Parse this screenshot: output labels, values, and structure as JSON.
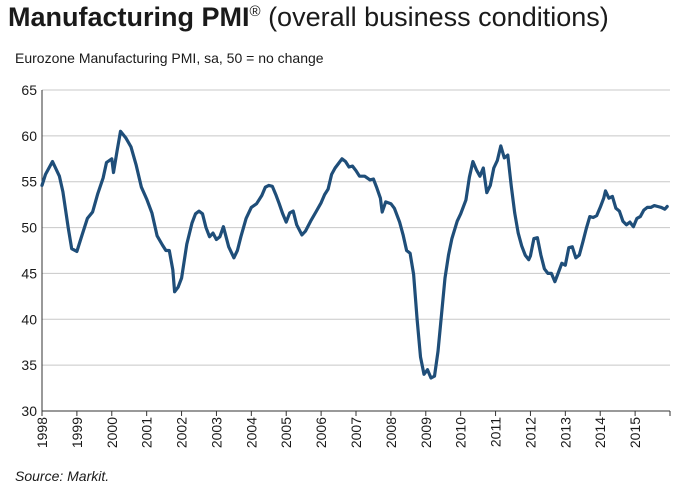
{
  "title": {
    "main": "Manufacturing PMI",
    "mark": "®",
    "rest": " (overall business conditions)"
  },
  "subtitle": "Eurozone Manufacturing PMI, sa, 50 = no change",
  "source": "Source: Markit.",
  "chart_data": {
    "type": "line",
    "title": "Manufacturing PMI® (overall business conditions)",
    "subtitle": "Eurozone Manufacturing PMI, sa, 50 = no change",
    "xlabel": "",
    "ylabel": "",
    "xlim": [
      1998.0,
      2016.0
    ],
    "ylim": [
      30,
      65
    ],
    "y_ticks": [
      30,
      35,
      40,
      45,
      50,
      55,
      60,
      65
    ],
    "x_ticks": [
      "1998",
      "1999",
      "2000",
      "2001",
      "2002",
      "2003",
      "2004",
      "2005",
      "2006",
      "2007",
      "2008",
      "2009",
      "2010",
      "2011",
      "2012",
      "2013",
      "2014",
      "2015"
    ],
    "grid": "horizontal",
    "line_color": "#1f4e79",
    "series": [
      {
        "points": [
          [
            1998.0,
            54.6
          ],
          [
            1998.1,
            55.8
          ],
          [
            1998.3,
            57.2
          ],
          [
            1998.5,
            55.6
          ],
          [
            1998.6,
            53.9
          ],
          [
            1998.75,
            50.0
          ],
          [
            1998.85,
            47.7
          ],
          [
            1999.0,
            47.4
          ],
          [
            1999.15,
            49.2
          ],
          [
            1999.3,
            51.0
          ],
          [
            1999.45,
            51.7
          ],
          [
            1999.6,
            53.7
          ],
          [
            1999.75,
            55.4
          ],
          [
            1999.85,
            57.1
          ],
          [
            2000.0,
            57.5
          ],
          [
            2000.05,
            56.0
          ],
          [
            2000.15,
            58.3
          ],
          [
            2000.25,
            60.5
          ],
          [
            2000.4,
            59.8
          ],
          [
            2000.55,
            58.8
          ],
          [
            2000.7,
            56.8
          ],
          [
            2000.85,
            54.4
          ],
          [
            2001.0,
            53.1
          ],
          [
            2001.15,
            51.6
          ],
          [
            2001.3,
            49.1
          ],
          [
            2001.45,
            48.1
          ],
          [
            2001.55,
            47.5
          ],
          [
            2001.65,
            47.5
          ],
          [
            2001.75,
            45.4
          ],
          [
            2001.8,
            43.0
          ],
          [
            2001.9,
            43.5
          ],
          [
            2002.0,
            44.5
          ],
          [
            2002.15,
            48.2
          ],
          [
            2002.3,
            50.5
          ],
          [
            2002.4,
            51.5
          ],
          [
            2002.5,
            51.8
          ],
          [
            2002.6,
            51.5
          ],
          [
            2002.7,
            50.0
          ],
          [
            2002.8,
            49.0
          ],
          [
            2002.9,
            49.4
          ],
          [
            2003.0,
            48.7
          ],
          [
            2003.1,
            49.0
          ],
          [
            2003.2,
            50.1
          ],
          [
            2003.35,
            47.9
          ],
          [
            2003.5,
            46.7
          ],
          [
            2003.6,
            47.5
          ],
          [
            2003.7,
            49.0
          ],
          [
            2003.85,
            51.0
          ],
          [
            2004.0,
            52.2
          ],
          [
            2004.15,
            52.6
          ],
          [
            2004.3,
            53.5
          ],
          [
            2004.4,
            54.4
          ],
          [
            2004.5,
            54.6
          ],
          [
            2004.6,
            54.5
          ],
          [
            2004.7,
            53.6
          ],
          [
            2004.8,
            52.6
          ],
          [
            2004.9,
            51.5
          ],
          [
            2005.0,
            50.6
          ],
          [
            2005.1,
            51.6
          ],
          [
            2005.2,
            51.8
          ],
          [
            2005.3,
            50.3
          ],
          [
            2005.45,
            49.2
          ],
          [
            2005.55,
            49.6
          ],
          [
            2005.7,
            50.7
          ],
          [
            2005.85,
            51.7
          ],
          [
            2006.0,
            52.7
          ],
          [
            2006.1,
            53.6
          ],
          [
            2006.2,
            54.2
          ],
          [
            2006.3,
            55.8
          ],
          [
            2006.4,
            56.5
          ],
          [
            2006.5,
            57.0
          ],
          [
            2006.6,
            57.5
          ],
          [
            2006.7,
            57.2
          ],
          [
            2006.8,
            56.6
          ],
          [
            2006.9,
            56.7
          ],
          [
            2007.0,
            56.2
          ],
          [
            2007.1,
            55.6
          ],
          [
            2007.25,
            55.6
          ],
          [
            2007.4,
            55.2
          ],
          [
            2007.5,
            55.3
          ],
          [
            2007.6,
            54.3
          ],
          [
            2007.7,
            53.2
          ],
          [
            2007.75,
            51.7
          ],
          [
            2007.85,
            52.8
          ],
          [
            2008.0,
            52.6
          ],
          [
            2008.1,
            52.1
          ],
          [
            2008.25,
            50.6
          ],
          [
            2008.35,
            49.2
          ],
          [
            2008.45,
            47.5
          ],
          [
            2008.55,
            47.2
          ],
          [
            2008.65,
            44.9
          ],
          [
            2008.75,
            40.0
          ],
          [
            2008.85,
            35.9
          ],
          [
            2008.95,
            34.0
          ],
          [
            2009.05,
            34.5
          ],
          [
            2009.15,
            33.6
          ],
          [
            2009.25,
            33.8
          ],
          [
            2009.35,
            36.5
          ],
          [
            2009.45,
            40.5
          ],
          [
            2009.55,
            44.5
          ],
          [
            2009.65,
            47.0
          ],
          [
            2009.75,
            48.8
          ],
          [
            2009.9,
            50.7
          ],
          [
            2010.0,
            51.5
          ],
          [
            2010.15,
            53.0
          ],
          [
            2010.25,
            55.5
          ],
          [
            2010.35,
            57.2
          ],
          [
            2010.45,
            56.3
          ],
          [
            2010.55,
            55.6
          ],
          [
            2010.65,
            56.5
          ],
          [
            2010.75,
            53.8
          ],
          [
            2010.85,
            54.6
          ],
          [
            2010.95,
            56.5
          ],
          [
            2011.05,
            57.3
          ],
          [
            2011.15,
            58.9
          ],
          [
            2011.25,
            57.6
          ],
          [
            2011.35,
            57.9
          ],
          [
            2011.45,
            54.5
          ],
          [
            2011.55,
            51.6
          ],
          [
            2011.65,
            49.4
          ],
          [
            2011.75,
            48.0
          ],
          [
            2011.85,
            47.0
          ],
          [
            2011.95,
            46.5
          ],
          [
            2012.0,
            46.9
          ],
          [
            2012.1,
            48.8
          ],
          [
            2012.2,
            48.9
          ],
          [
            2012.3,
            47.0
          ],
          [
            2012.4,
            45.5
          ],
          [
            2012.5,
            45.0
          ],
          [
            2012.6,
            45.0
          ],
          [
            2012.7,
            44.1
          ],
          [
            2012.8,
            45.1
          ],
          [
            2012.9,
            46.1
          ],
          [
            2013.0,
            45.9
          ],
          [
            2013.1,
            47.8
          ],
          [
            2013.2,
            47.9
          ],
          [
            2013.3,
            46.7
          ],
          [
            2013.4,
            47.0
          ],
          [
            2013.5,
            48.4
          ],
          [
            2013.6,
            49.9
          ],
          [
            2013.7,
            51.2
          ],
          [
            2013.8,
            51.1
          ],
          [
            2013.9,
            51.3
          ],
          [
            2014.0,
            52.2
          ],
          [
            2014.1,
            53.2
          ],
          [
            2014.15,
            54.0
          ],
          [
            2014.25,
            53.2
          ],
          [
            2014.35,
            53.4
          ],
          [
            2014.45,
            52.1
          ],
          [
            2014.55,
            51.8
          ],
          [
            2014.65,
            50.7
          ],
          [
            2014.75,
            50.3
          ],
          [
            2014.85,
            50.6
          ],
          [
            2014.95,
            50.1
          ],
          [
            2015.05,
            51.0
          ],
          [
            2015.15,
            51.2
          ],
          [
            2015.25,
            51.9
          ],
          [
            2015.35,
            52.2
          ],
          [
            2015.45,
            52.2
          ],
          [
            2015.55,
            52.4
          ],
          [
            2015.65,
            52.3
          ],
          [
            2015.75,
            52.2
          ],
          [
            2015.85,
            52.0
          ],
          [
            2015.92,
            52.3
          ]
        ]
      }
    ]
  }
}
